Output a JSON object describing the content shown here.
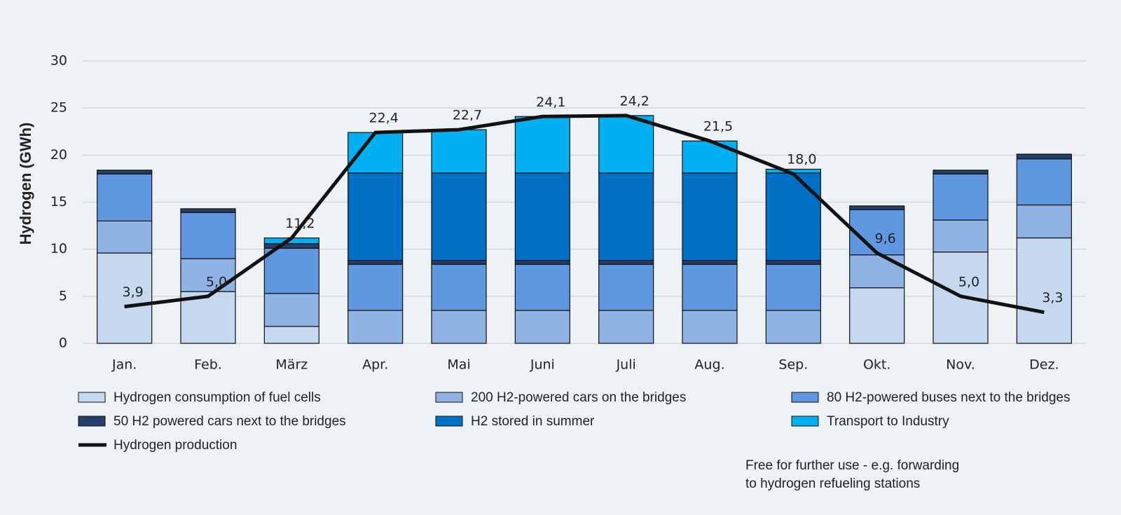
{
  "chart_data": {
    "type": "bar",
    "y_label": "Hydrogen (GWh)",
    "categories": [
      "Jan.",
      "Feb.",
      "März",
      "Apr.",
      "Mai",
      "Juni",
      "Juli",
      "Aug.",
      "Sep.",
      "Okt.",
      "Nov.",
      "Dez."
    ],
    "ylim": [
      0,
      30
    ],
    "yticks": [
      0,
      5,
      10,
      15,
      20,
      25,
      30
    ],
    "grid": true,
    "series": [
      {
        "name": "Hydrogen consumption of fuel cells",
        "color": "#c6d7f0",
        "values": [
          9.6,
          5.5,
          1.8,
          0,
          0,
          0,
          0,
          0,
          0,
          5.9,
          9.7,
          11.2
        ]
      },
      {
        "name": "200 H2-powered cars on the bridges",
        "color": "#8fb3e4",
        "values": [
          3.4,
          3.5,
          3.5,
          3.5,
          3.5,
          3.5,
          3.5,
          3.5,
          3.5,
          3.5,
          3.4,
          3.5
        ]
      },
      {
        "name": "80 H2-powered buses next to the bridges",
        "color": "#5f98e0",
        "values": [
          5.0,
          4.9,
          4.8,
          4.9,
          4.9,
          4.9,
          4.9,
          4.9,
          4.9,
          4.8,
          4.9,
          4.9
        ]
      },
      {
        "name": "50 H2 powered cars next to the bridges",
        "color": "#243f6a",
        "values": [
          0.4,
          0.4,
          0.5,
          0.4,
          0.4,
          0.4,
          0.4,
          0.4,
          0.4,
          0.4,
          0.4,
          0.5
        ]
      },
      {
        "name": "H2 stored in summer",
        "color": "#0070c4",
        "values": [
          0,
          0,
          0,
          9.3,
          9.3,
          9.3,
          9.3,
          9.3,
          9.3,
          0,
          0,
          0
        ]
      },
      {
        "name": "Transport to Industry",
        "color": "#00b0f0",
        "values": [
          0,
          0,
          0.6,
          4.3,
          4.6,
          6.0,
          6.1,
          3.4,
          0.4,
          0,
          0,
          0
        ]
      },
      {
        "name": "Hydrogen production",
        "type": "line",
        "color": "#111111",
        "values": [
          3.9,
          5.0,
          11.2,
          22.4,
          22.7,
          24.1,
          24.2,
          21.5,
          18.0,
          9.6,
          5.0,
          3.3
        ],
        "value_labels": [
          "3,9",
          "5,0",
          "11,2",
          "22,4",
          "22,7",
          "24,1",
          "24,2",
          "21,5",
          "18,0",
          "9,6",
          "5,0",
          "3,3"
        ]
      }
    ],
    "annotation": [
      "Free for further use - e.g. forwarding",
      "to hydrogen refueling stations"
    ]
  }
}
